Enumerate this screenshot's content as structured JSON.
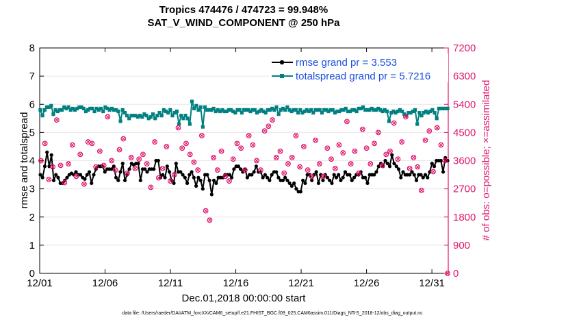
{
  "chart_data": {
    "type": "line",
    "title": "Tropics 474476 / 474723 = 99.948%",
    "subtitle": "SAT_V_WIND_COMPONENT @ 250 hPa",
    "xlabel": "Dec.01,2018 00:00:00 start",
    "ylabel_left": "rmse and totalspread",
    "ylabel_right": "# of obs: o=possible; ×=assimilated",
    "footer": "data file: /Users/raeder/DAI/ATM_forcXX/CAM6_setup/f.e21.FHIST_BGC.f09_025.CAM6assim.011/Diags_NTrS_2018-12/obs_diag_output.nc",
    "xlim": [
      0,
      31.25
    ],
    "ylim_left": [
      0,
      8
    ],
    "ylim_right": [
      0,
      7200
    ],
    "x_tick_values": [
      0,
      5,
      10,
      15,
      20,
      25,
      30
    ],
    "x_tick_labels": [
      "12/01",
      "12/06",
      "12/11",
      "12/16",
      "12/21",
      "12/26",
      "12/31"
    ],
    "y_left_ticks": [
      "0",
      "1",
      "2",
      "3",
      "4",
      "5",
      "6",
      "7",
      "8"
    ],
    "y_right_ticks": [
      "0",
      "900",
      "1800",
      "2700",
      "3600",
      "4500",
      "5400",
      "6300",
      "7200"
    ],
    "colors": {
      "rmse": "#000000",
      "totalspread": "#008080",
      "obs": "#e0156d",
      "legend_text": "#1a4fe0",
      "right_axis": "#e0156d"
    },
    "series": [
      {
        "name": "rmse grand pr = 3.553",
        "axis": "left",
        "values": [
          3.5,
          3.4,
          3.8,
          4.3,
          3.8,
          4.2,
          3.3,
          3.5,
          3.4,
          3.2,
          3.2,
          3.3,
          3.4,
          3.5,
          3.55,
          3.5,
          3.6,
          3.5,
          3.5,
          3.4,
          3.35,
          3.5,
          3.6,
          3.2,
          3.5,
          3.7,
          3.8,
          3.8,
          3.8,
          3.6,
          3.7,
          3.7,
          3.7,
          3.8,
          3.4,
          3.3,
          3.6,
          3.9,
          3.3,
          3.5,
          3.7,
          3.9,
          3.85,
          3.9,
          3.9,
          3.3,
          3.7,
          3.7,
          3.6,
          3.7,
          3.7,
          3.7,
          4.0,
          4.0,
          3.4,
          3.5,
          3.4,
          3.8,
          3.6,
          3.3,
          3.2,
          3.9,
          3.6,
          3.6,
          3.5,
          3.4,
          3.2,
          3.5,
          3.6,
          3.4,
          3.1,
          3.4,
          3.3,
          3.0,
          3.5,
          3.5,
          3.3,
          2.8,
          3.3,
          3.2,
          3.4,
          3.4,
          3.4,
          3.5,
          3.5,
          3.5,
          3.4,
          3.7,
          3.8,
          3.8,
          3.7,
          3.6,
          3.7,
          3.4,
          3.5,
          3.5,
          3.6,
          3.8,
          3.6,
          3.6,
          3.4,
          3.5,
          3.4,
          3.3,
          3.5,
          3.6,
          3.6,
          3.4,
          3.3,
          3.3,
          3.4,
          3.3,
          3.2,
          3.1,
          3.2,
          3.0,
          2.9,
          2.9,
          3.3,
          3.2,
          3.5,
          3.5,
          3.3,
          3.5,
          3.6,
          3.2,
          3.5,
          3.3,
          3.5,
          3.4,
          3.3,
          3.2,
          3.5,
          3.4,
          3.5,
          3.3,
          3.4,
          3.6,
          3.5,
          3.5,
          3.3,
          3.4,
          3.5,
          3.5,
          3.6,
          3.4,
          3.4,
          3.2,
          3.5,
          3.5,
          3.5,
          3.6,
          3.8,
          3.9,
          3.8,
          4.0,
          3.9,
          3.8,
          4.2,
          3.9,
          3.8,
          3.7,
          3.4,
          3.6,
          3.5,
          3.5,
          3.5,
          3.6,
          3.5,
          3.3,
          3.5,
          3.5,
          3.4,
          3.5,
          3.4,
          3.6,
          3.9,
          3.8,
          4.0,
          4.0,
          4.0,
          3.6,
          4.1,
          4.0
        ]
      },
      {
        "name": "totalspread grand pr = 5.7216",
        "axis": "left",
        "values": [
          5.8,
          5.6,
          5.8,
          5.9,
          5.9,
          5.95,
          5.65,
          5.8,
          5.75,
          5.8,
          5.8,
          5.9,
          5.85,
          5.9,
          5.8,
          5.85,
          5.8,
          5.85,
          5.9,
          5.9,
          5.85,
          5.75,
          5.8,
          5.85,
          5.85,
          5.75,
          5.85,
          5.8,
          5.85,
          5.75,
          5.9,
          5.85,
          5.8,
          5.85,
          5.8,
          5.8,
          5.75,
          5.4,
          5.8,
          5.7,
          5.6,
          5.5,
          5.6,
          5.6,
          5.6,
          5.55,
          5.6,
          5.55,
          5.65,
          5.6,
          5.5,
          5.55,
          5.65,
          5.5,
          5.6,
          5.7,
          5.6,
          5.8,
          5.75,
          5.7,
          5.8,
          5.6,
          5.7,
          5.75,
          5.3,
          5.6,
          5.5,
          5.6,
          5.5,
          5.3,
          6.1,
          5.85,
          5.95,
          5.8,
          5.9,
          5.2,
          5.9,
          5.8,
          5.8,
          5.8,
          5.85,
          5.75,
          5.8,
          5.75,
          5.8,
          5.75,
          5.75,
          5.8,
          5.8,
          5.75,
          5.7,
          5.8,
          5.8,
          5.7,
          5.8,
          5.8,
          5.8,
          5.75,
          5.8,
          5.8,
          5.7,
          5.75,
          5.8,
          5.75,
          5.7,
          5.8,
          5.8,
          5.85,
          5.8,
          5.9,
          5.65,
          5.8,
          5.85,
          5.8,
          5.9,
          5.8,
          5.75,
          5.8,
          5.8,
          5.7,
          5.8,
          5.7,
          5.75,
          5.8,
          5.75,
          5.8,
          5.7,
          5.8,
          5.8,
          5.8,
          5.7,
          5.8,
          5.8,
          5.75,
          5.8,
          5.8,
          5.7,
          5.75,
          5.75,
          5.8,
          5.8,
          5.85,
          5.75,
          5.75,
          5.8,
          5.8,
          5.75,
          5.85,
          5.85,
          5.9,
          5.8,
          5.8,
          5.8,
          5.85,
          5.8,
          5.8,
          5.85,
          5.8,
          5.75,
          5.8,
          5.75,
          5.4,
          5.7,
          5.75,
          5.7,
          5.75,
          5.8,
          5.75,
          5.65,
          5.6,
          5.7,
          5.7,
          5.75,
          5.8,
          5.3,
          5.7,
          5.6,
          5.7,
          5.75,
          5.7,
          5.75,
          5.8,
          5.7,
          5.5,
          5.85,
          5.85,
          5.85,
          5.85,
          5.85
        ]
      },
      {
        "name": "# of obs",
        "axis": "right",
        "marker": "circle-x",
        "x": [
          0.1,
          0.4,
          0.7,
          1.0,
          1.3,
          1.6,
          1.9,
          2.2,
          2.5,
          2.8,
          3.1,
          3.4,
          3.7,
          4.0,
          4.3,
          4.6,
          4.9,
          5.2,
          5.5,
          5.8,
          6.1,
          6.4,
          6.7,
          7.0,
          7.3,
          7.6,
          7.9,
          8.2,
          8.5,
          8.8,
          9.1,
          9.4,
          9.7,
          10.0,
          10.3,
          10.6,
          10.9,
          11.2,
          11.5,
          11.8,
          12.1,
          12.4,
          12.7,
          13.0,
          13.3,
          13.6,
          13.9,
          14.2,
          14.5,
          14.8,
          15.1,
          15.4,
          15.7,
          16.0,
          16.3,
          16.6,
          16.9,
          17.2,
          17.5,
          17.8,
          18.1,
          18.4,
          18.7,
          19.0,
          19.3,
          19.6,
          19.9,
          20.2,
          20.5,
          20.8,
          21.1,
          21.4,
          21.7,
          22.0,
          22.3,
          22.6,
          22.9,
          23.2,
          23.5,
          23.8,
          24.1,
          24.4,
          24.7,
          25.0,
          25.3,
          25.6,
          25.9,
          26.2,
          26.5,
          26.8,
          27.1,
          27.4,
          27.7,
          28.0,
          28.3,
          28.6,
          28.9,
          29.2,
          29.5,
          29.8,
          30.1,
          30.4,
          30.7,
          31.0,
          31.2
        ],
        "values": [
          3600,
          4150,
          3000,
          3400,
          4900,
          3450,
          2900,
          3500,
          4100,
          3100,
          3800,
          2850,
          4200,
          4150,
          3400,
          3900,
          3450,
          5000,
          3600,
          3300,
          3950,
          4300,
          3200,
          3700,
          3350,
          3650,
          3800,
          3500,
          2750,
          4200,
          3050,
          3350,
          4050,
          2950,
          3150,
          4650,
          4000,
          4150,
          3800,
          3550,
          3300,
          4400,
          2000,
          1700,
          3700,
          3300,
          3900,
          3100,
          2950,
          3650,
          4150,
          4000,
          3300,
          4400,
          4100,
          3600,
          3300,
          4550,
          4700,
          4900,
          3700,
          3900,
          3200,
          3500,
          3700,
          4400,
          3400,
          4050,
          3300,
          3100,
          4250,
          3500,
          3100,
          4000,
          3650,
          3350,
          4100,
          3850,
          4850,
          3500,
          3900,
          3200,
          4600,
          4000,
          3500,
          4150,
          4500,
          3450,
          3800,
          3900,
          4800,
          3650,
          4200,
          5000,
          3350,
          3700,
          3400,
          2650,
          4250,
          4550,
          3250,
          4650,
          4100,
          3600,
          0
        ]
      }
    ]
  }
}
